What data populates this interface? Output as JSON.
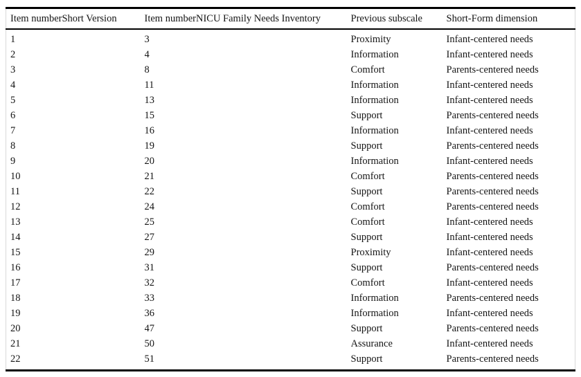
{
  "table": {
    "columns": [
      "Item numberShort Version",
      "Item numberNICU Family Needs Inventory",
      "Previous subscale",
      "Short-Form dimension"
    ],
    "rows": [
      [
        "1",
        "3",
        "Proximity",
        "Infant-centered needs"
      ],
      [
        "2",
        "4",
        "Information",
        "Infant-centered needs"
      ],
      [
        "3",
        "8",
        "Comfort",
        "Parents-centered needs"
      ],
      [
        "4",
        "11",
        "Information",
        "Infant-centered needs"
      ],
      [
        "5",
        "13",
        "Information",
        "Infant-centered needs"
      ],
      [
        "6",
        "15",
        "Support",
        "Parents-centered needs"
      ],
      [
        "7",
        "16",
        "Information",
        "Infant-centered needs"
      ],
      [
        "8",
        "19",
        "Support",
        "Parents-centered needs"
      ],
      [
        "9",
        "20",
        "Information",
        "Infant-centered needs"
      ],
      [
        "10",
        "21",
        "Comfort",
        "Parents-centered needs"
      ],
      [
        "11",
        "22",
        "Support",
        "Parents-centered needs"
      ],
      [
        "12",
        "24",
        "Comfort",
        "Parents-centered needs"
      ],
      [
        "13",
        "25",
        "Comfort",
        "Infant-centered needs"
      ],
      [
        "14",
        "27",
        "Support",
        "Infant-centered needs"
      ],
      [
        "15",
        "29",
        "Proximity",
        "Infant-centered needs"
      ],
      [
        "16",
        "31",
        "Support",
        "Parents-centered needs"
      ],
      [
        "17",
        "32",
        "Comfort",
        "Infant-centered needs"
      ],
      [
        "18",
        "33",
        "Information",
        "Parents-centered needs"
      ],
      [
        "19",
        "36",
        "Information",
        "Infant-centered needs"
      ],
      [
        "20",
        "47",
        "Support",
        "Parents-centered needs"
      ],
      [
        "21",
        "50",
        "Assurance",
        "Infant-centered needs"
      ],
      [
        "22",
        "51",
        "Support",
        "Parents-centered needs"
      ]
    ]
  }
}
